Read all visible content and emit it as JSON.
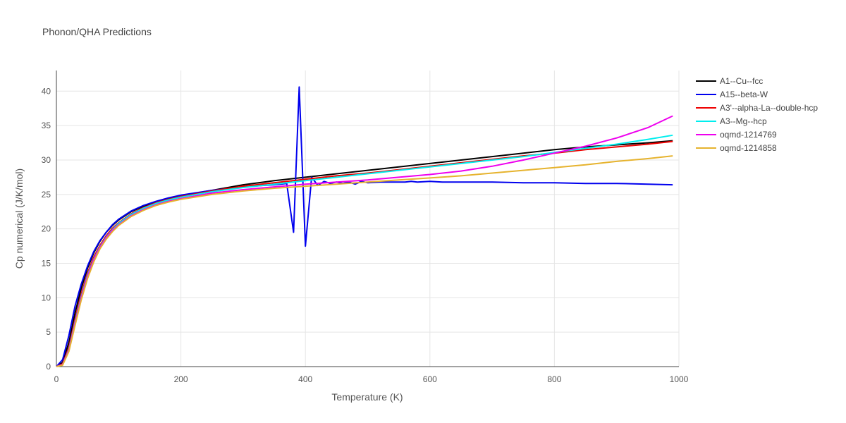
{
  "chart_data": {
    "type": "line",
    "title": "Phonon/QHA Predictions",
    "xlabel": "Temperature (K)",
    "ylabel": "Cp numerical (J/K/mol)",
    "xlim": [
      0,
      1000
    ],
    "ylim": [
      0,
      43
    ],
    "xticks": [
      0,
      200,
      400,
      600,
      800,
      1000
    ],
    "yticks": [
      0,
      5,
      10,
      15,
      20,
      25,
      30,
      35,
      40
    ],
    "grid": true,
    "legend_position": "right",
    "series": [
      {
        "name": "A1--Cu--fcc",
        "color": "#000000",
        "x": [
          0,
          10,
          20,
          30,
          40,
          50,
          60,
          70,
          80,
          90,
          100,
          120,
          140,
          160,
          180,
          200,
          250,
          300,
          350,
          400,
          450,
          500,
          550,
          600,
          650,
          700,
          750,
          800,
          850,
          900,
          950,
          990
        ],
        "y": [
          0,
          0.6,
          3.5,
          7.8,
          11.4,
          14.3,
          16.5,
          18.2,
          19.5,
          20.5,
          21.3,
          22.5,
          23.3,
          23.9,
          24.4,
          24.8,
          25.6,
          26.4,
          27.0,
          27.5,
          28.0,
          28.5,
          29.0,
          29.5,
          30.0,
          30.5,
          31.0,
          31.5,
          31.9,
          32.2,
          32.5,
          32.8
        ]
      },
      {
        "name": "A15--beta-W",
        "color": "#0000ee",
        "x": [
          0,
          10,
          20,
          30,
          40,
          50,
          60,
          70,
          80,
          90,
          100,
          120,
          140,
          160,
          180,
          200,
          250,
          300,
          330,
          350,
          360,
          370,
          381,
          390,
          400,
          410,
          420,
          430,
          440,
          450,
          460,
          470,
          480,
          490,
          500,
          520,
          540,
          560,
          570,
          580,
          600,
          620,
          640,
          660,
          700,
          750,
          800,
          850,
          900,
          950,
          990
        ],
        "y": [
          0,
          1.0,
          4.5,
          8.8,
          12.0,
          14.6,
          16.7,
          18.3,
          19.5,
          20.6,
          21.4,
          22.6,
          23.4,
          24.0,
          24.5,
          24.9,
          25.6,
          26.1,
          26.3,
          26.4,
          26.5,
          26.6,
          19.5,
          40.6,
          17.5,
          27.5,
          26.3,
          26.9,
          26.6,
          26.8,
          26.6,
          26.8,
          26.5,
          26.9,
          26.7,
          26.8,
          26.8,
          26.8,
          26.9,
          26.8,
          26.9,
          26.8,
          26.8,
          26.8,
          26.8,
          26.7,
          26.7,
          26.6,
          26.6,
          26.5,
          26.4
        ]
      },
      {
        "name": "A3'--alpha-La--double-hcp",
        "color": "#ee0000",
        "x": [
          0,
          10,
          20,
          30,
          40,
          50,
          60,
          70,
          80,
          90,
          100,
          120,
          140,
          160,
          180,
          200,
          250,
          300,
          350,
          400,
          450,
          500,
          550,
          600,
          650,
          700,
          750,
          800,
          850,
          900,
          950,
          990
        ],
        "y": [
          0,
          0.4,
          2.8,
          6.9,
          10.6,
          13.6,
          15.9,
          17.6,
          19.0,
          20.1,
          20.9,
          22.2,
          23.1,
          23.8,
          24.3,
          24.7,
          25.5,
          26.2,
          26.7,
          27.2,
          27.7,
          28.1,
          28.6,
          29.1,
          29.6,
          30.1,
          30.6,
          31.0,
          31.5,
          31.9,
          32.3,
          32.7
        ]
      },
      {
        "name": "A3--Mg--hcp",
        "color": "#00eeee",
        "x": [
          0,
          10,
          20,
          30,
          40,
          50,
          60,
          70,
          80,
          90,
          100,
          120,
          140,
          160,
          180,
          200,
          250,
          300,
          350,
          400,
          450,
          500,
          550,
          600,
          650,
          700,
          750,
          800,
          850,
          900,
          950,
          990
        ],
        "y": [
          0,
          0.3,
          2.5,
          6.5,
          10.2,
          13.3,
          15.6,
          17.4,
          18.8,
          19.9,
          20.8,
          22.1,
          23.0,
          23.7,
          24.2,
          24.6,
          25.4,
          26.0,
          26.5,
          27.0,
          27.5,
          28.0,
          28.5,
          29.0,
          29.5,
          30.0,
          30.5,
          31.1,
          31.7,
          32.3,
          33.0,
          33.6
        ]
      },
      {
        "name": "oqmd-1214769",
        "color": "#ee00ee",
        "x": [
          0,
          10,
          20,
          30,
          40,
          50,
          60,
          70,
          80,
          90,
          100,
          120,
          140,
          160,
          180,
          200,
          250,
          300,
          350,
          400,
          450,
          500,
          550,
          600,
          650,
          700,
          750,
          800,
          850,
          900,
          950,
          990
        ],
        "y": [
          0,
          0.3,
          2.4,
          6.3,
          10.0,
          13.1,
          15.5,
          17.3,
          18.7,
          19.8,
          20.6,
          21.9,
          22.8,
          23.5,
          24.0,
          24.4,
          25.2,
          25.7,
          26.1,
          26.5,
          26.8,
          27.1,
          27.5,
          27.9,
          28.4,
          29.1,
          30.0,
          31.0,
          32.0,
          33.2,
          34.7,
          36.4
        ]
      },
      {
        "name": "oqmd-1214858",
        "color": "#e6b32e",
        "x": [
          0,
          10,
          20,
          30,
          40,
          50,
          60,
          70,
          80,
          90,
          100,
          120,
          140,
          160,
          180,
          200,
          250,
          300,
          350,
          400,
          450,
          500,
          550,
          600,
          650,
          700,
          750,
          800,
          850,
          900,
          950,
          990
        ],
        "y": [
          0,
          0.2,
          2.2,
          6.0,
          9.7,
          12.8,
          15.2,
          17.1,
          18.5,
          19.6,
          20.5,
          21.8,
          22.7,
          23.4,
          23.9,
          24.3,
          25.0,
          25.5,
          25.9,
          26.2,
          26.5,
          26.8,
          27.1,
          27.4,
          27.7,
          28.1,
          28.5,
          28.9,
          29.3,
          29.8,
          30.2,
          30.6
        ]
      }
    ]
  }
}
